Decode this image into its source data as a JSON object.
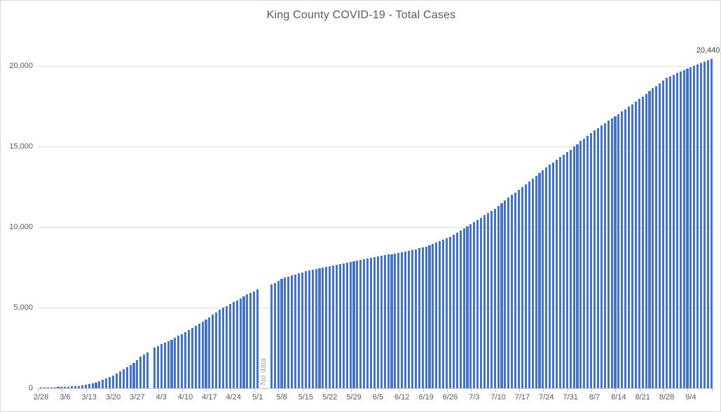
{
  "chart_data": {
    "type": "bar",
    "title": "King County COVID-19 - Total Cases",
    "xlabel": "",
    "ylabel": "",
    "start_date": "2/28",
    "interval": "daily",
    "x_tick_labels": [
      "2/28",
      "3/6",
      "3/13",
      "3/20",
      "3/27",
      "4/3",
      "4/10",
      "4/17",
      "4/24",
      "5/1",
      "5/8",
      "5/15",
      "5/22",
      "5/29",
      "6/5",
      "6/12",
      "6/19",
      "6/26",
      "7/3",
      "7/10",
      "7/17",
      "7/24",
      "7/31",
      "8/7",
      "8/14",
      "8/21",
      "8/28",
      "9/4"
    ],
    "x_tick_every_n_bars": 7,
    "y_ticks": [
      0,
      5000,
      10000,
      15000,
      20000
    ],
    "y_tick_labels": [
      "0",
      "5,000",
      "10,000",
      "15,000",
      "20,000"
    ],
    "ylim": [
      0,
      20440
    ],
    "grid": "horizontal",
    "legend": "none",
    "bar_color": "#4472C4",
    "last_value_label": "20,440",
    "no_data_label": "No data",
    "values": [
      35,
      40,
      45,
      55,
      60,
      70,
      80,
      90,
      100,
      115,
      130,
      150,
      175,
      210,
      260,
      300,
      350,
      430,
      510,
      590,
      680,
      780,
      900,
      1030,
      1170,
      1300,
      1440,
      1580,
      1740,
      1950,
      2100,
      2220,
      null,
      2520,
      2630,
      2740,
      2820,
      2900,
      3000,
      3120,
      3240,
      3350,
      3465,
      3600,
      3730,
      3860,
      4000,
      4140,
      4270,
      4400,
      4560,
      4700,
      4850,
      4980,
      5100,
      5210,
      5330,
      5450,
      5570,
      5700,
      5820,
      5920,
      6020,
      6150,
      null,
      null,
      null,
      6440,
      6540,
      6650,
      6770,
      6850,
      6930,
      6990,
      7060,
      7120,
      7190,
      7260,
      7310,
      7360,
      7400,
      7440,
      7480,
      7520,
      7560,
      7600,
      7640,
      7690,
      7730,
      7770,
      7810,
      7850,
      7900,
      7950,
      8000,
      8040,
      8090,
      8130,
      8170,
      8210,
      8250,
      8290,
      8320,
      8360,
      8390,
      8430,
      8480,
      8530,
      8580,
      8630,
      8690,
      8740,
      8800,
      8880,
      8960,
      9040,
      9120,
      9210,
      9300,
      9400,
      9520,
      9650,
      9790,
      9920,
      10040,
      10170,
      10300,
      10440,
      10580,
      10720,
      10860,
      11000,
      11150,
      11300,
      11470,
      11640,
      11810,
      11980,
      12150,
      12320,
      12500,
      12670,
      12840,
      13010,
      13180,
      13350,
      13520,
      13700,
      13860,
      14020,
      14180,
      14340,
      14500,
      14650,
      14800,
      14980,
      15150,
      15330,
      15500,
      15670,
      15840,
      16000,
      16150,
      16300,
      16450,
      16600,
      16730,
      16870,
      17000,
      17160,
      17320,
      17470,
      17630,
      17780,
      17940,
      18100,
      18270,
      18430,
      18600,
      18760,
      18930,
      19090,
      19260,
      19360,
      19450,
      19550,
      19640,
      19730,
      19820,
      19910,
      20000,
      20090,
      20180,
      20270,
      20350,
      20440
    ],
    "colors": {
      "bar": "#4472C4",
      "gridline": "#dcdcdc",
      "axis_line": "#bfbfbf",
      "text": "#595959",
      "no_data_text": "#a6a6a6",
      "border": "#d9d9d9"
    }
  }
}
